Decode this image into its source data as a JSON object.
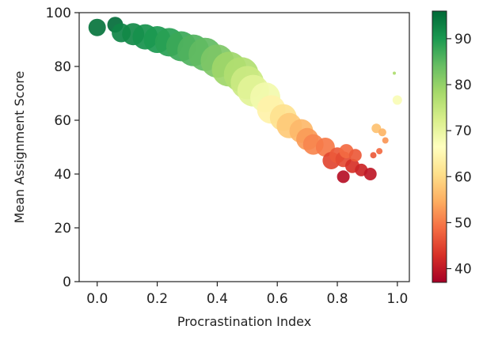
{
  "chart_data": {
    "type": "scatter",
    "title": "",
    "xlabel": "Procrastination Index",
    "ylabel": "Mean Assignment Score",
    "xlim": [
      -0.06,
      1.04
    ],
    "ylim": [
      0,
      100
    ],
    "xticks": [
      0.0,
      0.2,
      0.4,
      0.6,
      0.8,
      1.0
    ],
    "xtick_labels": [
      "0.0",
      "0.2",
      "0.4",
      "0.6",
      "0.8",
      "1.0"
    ],
    "yticks": [
      0,
      20,
      40,
      60,
      80,
      100
    ],
    "ytick_labels": [
      "0",
      "20",
      "40",
      "60",
      "80",
      "100"
    ],
    "grid": false,
    "point_size_encodes": "relative marker size",
    "colorbar": {
      "colormap": "RdYlGn",
      "range": [
        37,
        96
      ],
      "ticks": [
        40,
        50,
        60,
        70,
        80,
        90
      ],
      "tick_labels": [
        "40",
        "50",
        "60",
        "70",
        "80",
        "90"
      ]
    },
    "points": [
      {
        "x": 0.0,
        "y": 94.5,
        "size": 11
      },
      {
        "x": 0.06,
        "y": 95.5,
        "size": 10
      },
      {
        "x": 0.08,
        "y": 92.5,
        "size": 12
      },
      {
        "x": 0.12,
        "y": 92.0,
        "size": 14
      },
      {
        "x": 0.16,
        "y": 91.0,
        "size": 16
      },
      {
        "x": 0.2,
        "y": 90.0,
        "size": 17
      },
      {
        "x": 0.24,
        "y": 89.0,
        "size": 18
      },
      {
        "x": 0.28,
        "y": 87.5,
        "size": 19
      },
      {
        "x": 0.32,
        "y": 86.0,
        "size": 20
      },
      {
        "x": 0.36,
        "y": 84.5,
        "size": 21
      },
      {
        "x": 0.4,
        "y": 82.0,
        "size": 21
      },
      {
        "x": 0.44,
        "y": 79.0,
        "size": 22
      },
      {
        "x": 0.48,
        "y": 77.0,
        "size": 22
      },
      {
        "x": 0.5,
        "y": 74.0,
        "size": 21
      },
      {
        "x": 0.52,
        "y": 71.0,
        "size": 20
      },
      {
        "x": 0.56,
        "y": 68.5,
        "size": 19
      },
      {
        "x": 0.58,
        "y": 64.0,
        "size": 18
      },
      {
        "x": 0.62,
        "y": 61.0,
        "size": 17
      },
      {
        "x": 0.64,
        "y": 58.0,
        "size": 16
      },
      {
        "x": 0.68,
        "y": 56.0,
        "size": 15
      },
      {
        "x": 0.7,
        "y": 53.0,
        "size": 14
      },
      {
        "x": 0.72,
        "y": 51.0,
        "size": 13
      },
      {
        "x": 0.76,
        "y": 50.0,
        "size": 12
      },
      {
        "x": 0.78,
        "y": 45.0,
        "size": 11
      },
      {
        "x": 0.8,
        "y": 47.0,
        "size": 10
      },
      {
        "x": 0.82,
        "y": 45.5,
        "size": 10
      },
      {
        "x": 0.83,
        "y": 48.5,
        "size": 9
      },
      {
        "x": 0.85,
        "y": 43.0,
        "size": 9
      },
      {
        "x": 0.86,
        "y": 47.0,
        "size": 8
      },
      {
        "x": 0.88,
        "y": 41.5,
        "size": 8
      },
      {
        "x": 0.82,
        "y": 39.0,
        "size": 8
      },
      {
        "x": 0.91,
        "y": 40.0,
        "size": 8
      },
      {
        "x": 0.93,
        "y": 57.0,
        "size": 6
      },
      {
        "x": 0.95,
        "y": 55.5,
        "size": 5
      },
      {
        "x": 0.96,
        "y": 52.5,
        "size": 4
      },
      {
        "x": 0.94,
        "y": 48.5,
        "size": 4
      },
      {
        "x": 0.92,
        "y": 47.0,
        "size": 4
      },
      {
        "x": 1.0,
        "y": 67.5,
        "size": 6
      },
      {
        "x": 0.99,
        "y": 77.5,
        "size": 2
      }
    ]
  }
}
